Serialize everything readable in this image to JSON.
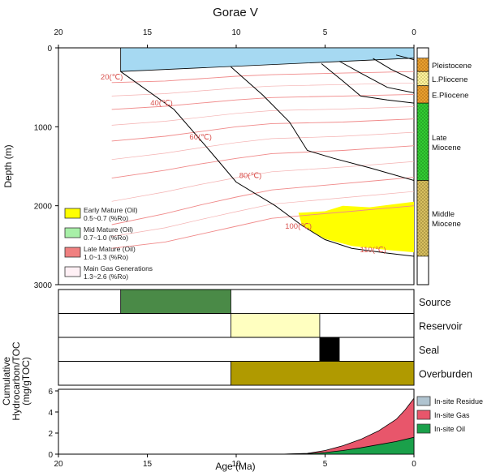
{
  "chart_data": [
    {
      "type": "burial-history",
      "title": "Gorae V",
      "xlabel": "",
      "ylabel": "Depth (m)",
      "x_ticks": [
        20,
        15,
        10,
        5,
        0
      ],
      "y_ticks": [
        0,
        1000,
        2000,
        3000
      ],
      "xlim": [
        20,
        0
      ],
      "ylim": [
        0,
        3000
      ],
      "burial_curves": [
        {
          "points": [
            [
              16.5,
              300
            ],
            [
              13.5,
              780
            ],
            [
              11.5,
              1300
            ],
            [
              10.0,
              1700
            ],
            [
              7.8,
              2000
            ],
            [
              6.3,
              2250
            ],
            [
              5.0,
              2430
            ],
            [
              3.5,
              2540
            ],
            [
              1.5,
              2600
            ],
            [
              0,
              2640
            ]
          ]
        },
        {
          "points": [
            [
              10.3,
              240
            ],
            [
              8.5,
              600
            ],
            [
              7.0,
              940
            ],
            [
              6.0,
              1300
            ],
            [
              4.5,
              1400
            ],
            [
              2.5,
              1520
            ],
            [
              0,
              1680
            ]
          ]
        },
        {
          "points": [
            [
              5.2,
              200
            ],
            [
              4.0,
              420
            ],
            [
              3.0,
              610
            ],
            [
              1.5,
              660
            ],
            [
              0,
              700
            ]
          ]
        },
        {
          "points": [
            [
              4.2,
              170
            ],
            [
              3.0,
              320
            ],
            [
              1.5,
              500
            ],
            [
              0,
              570
            ]
          ]
        },
        {
          "points": [
            [
              2.3,
              135
            ],
            [
              1.3,
              270
            ],
            [
              0,
              410
            ]
          ]
        },
        {
          "points": [
            [
              1.0,
              90
            ],
            [
              0,
              150
            ]
          ]
        }
      ],
      "surface_layer": {
        "top_left": [
          16.5,
          0
        ],
        "top_right": [
          0,
          0
        ],
        "bottom_left": [
          16.5,
          300
        ],
        "bottom_right": [
          0,
          130
        ]
      },
      "isotherm_labels": [
        {
          "label": "20(℃)",
          "age": 17.0,
          "depth": 400
        },
        {
          "label": "40(℃)",
          "age": 14.2,
          "depth": 730
        },
        {
          "label": "60(℃)",
          "age": 12.0,
          "depth": 1160
        },
        {
          "label": "80(℃)",
          "age": 9.2,
          "depth": 1650
        },
        {
          "label": "100(℃)",
          "age": 6.5,
          "depth": 2290
        },
        {
          "label": "110(℃)",
          "age": 2.3,
          "depth": 2590
        }
      ],
      "isotherm_depths": [
        [
          440,
          420,
          390,
          360,
          340,
          330,
          320,
          310,
          300
        ],
        [
          780,
          740,
          700,
          660,
          630,
          620,
          610,
          600,
          590
        ],
        [
          1180,
          1120,
          1060,
          1000,
          960,
          950,
          940,
          920,
          900
        ],
        [
          1650,
          1550,
          1470,
          1400,
          1340,
          1320,
          1300,
          1270,
          1240
        ],
        [
          2240,
          2100,
          1990,
          1890,
          1800,
          1760,
          1720,
          1680,
          1640
        ],
        [
          2540,
          2460,
          2360,
          2260,
          2160,
          2120,
          2080,
          2040,
          2000
        ]
      ],
      "isotherm_ages": [
        17.0,
        14.0,
        12.0,
        10.0,
        8.0,
        6.0,
        4.0,
        2.0,
        0.0
      ],
      "maturity_zones": [
        {
          "zone": "Early Mature (Oil)",
          "points": [
            [
              6.5,
              2090
            ],
            [
              5.0,
              2070
            ],
            [
              4.0,
              2000
            ],
            [
              2.5,
              2020
            ],
            [
              0,
              1950
            ],
            [
              0,
              2590
            ],
            [
              1.5,
              2560
            ],
            [
              3.5,
              2510
            ],
            [
              5.0,
              2420
            ],
            [
              6.3,
              2250
            ]
          ]
        }
      ],
      "legend": [
        {
          "label": "Early Mature (Oil)",
          "range": "0.5~0.7 (%Ro)",
          "color": "#ffff00"
        },
        {
          "label": "Mid Mature (Oil)",
          "range": "0.7~1.0 (%Ro)",
          "color": "#a8f0a8"
        },
        {
          "label": "Late Mature (Oil)",
          "range": "1.0~1.3 (%Ro)",
          "color": "#f08080"
        },
        {
          "label": "Main Gas Generations",
          "range": "1.3~2.6 (%Ro)",
          "color": "#fff0f5"
        }
      ],
      "epochs": [
        {
          "name": "Pleistocene",
          "top": 130,
          "bottom": 300,
          "pattern": "dots-orange"
        },
        {
          "name": "L.Pliocene",
          "top": 300,
          "bottom": 480,
          "pattern": "dots-yellow"
        },
        {
          "name": "E.Pliocene",
          "top": 480,
          "bottom": 700,
          "pattern": "dots-orange"
        },
        {
          "name": "Late Miocene",
          "top": 700,
          "bottom": 1680,
          "pattern": "dots-green"
        },
        {
          "name": "Middle Miocene",
          "top": 1680,
          "bottom": 2640,
          "pattern": "dots-khaki"
        }
      ],
      "epoch_labels": [
        "Pleistocene",
        "L.Pliocene",
        "E.Pliocene",
        "Late\nMiocene",
        "Middle\nMiocene"
      ]
    },
    {
      "type": "event-chart",
      "rows": [
        {
          "name": "Source",
          "start": 16.5,
          "end": 10.3,
          "color": "#4a8a47"
        },
        {
          "name": "Reservoir",
          "start": 10.3,
          "end": 5.3,
          "color": "#ffffc0"
        },
        {
          "name": "Seal",
          "start": 5.3,
          "end": 4.2,
          "color": "#000000"
        },
        {
          "name": "Overburden",
          "start": 10.3,
          "end": 0,
          "color": "#b09a00"
        }
      ]
    },
    {
      "type": "area",
      "ylabel": "Cumulative Hydrocarbon/TOC (mg/gTOC)",
      "xlabel": "Age (Ma)",
      "x_ticks": [
        20,
        15,
        10,
        5,
        0
      ],
      "y_ticks": [
        0,
        2,
        4,
        6
      ],
      "xlim": [
        20,
        0
      ],
      "ylim": [
        0,
        6
      ],
      "x": [
        7.5,
        6.0,
        5.0,
        4.0,
        3.0,
        2.0,
        1.0,
        0.5,
        0
      ],
      "series": [
        {
          "name": "In-site Oil",
          "values": [
            0,
            0.05,
            0.15,
            0.35,
            0.6,
            0.9,
            1.2,
            1.4,
            1.6
          ],
          "color": "#1aa04a"
        },
        {
          "name": "In-site Gas",
          "values": [
            0,
            0.08,
            0.35,
            0.8,
            1.4,
            2.2,
            3.3,
            4.2,
            5.3
          ],
          "color": "#e8566b"
        },
        {
          "name": "In-site Residue",
          "values": [
            0,
            0.08,
            0.35,
            0.8,
            1.4,
            2.2,
            3.3,
            4.2,
            5.3
          ],
          "color": "#b0c4d0"
        }
      ]
    }
  ],
  "title": "Gorae V",
  "axis_labels": {
    "depth": "Depth (m)",
    "age": "Age (Ma)",
    "hc_line1": "Cumulative",
    "hc_line2": "Hydrocarbon/TOC",
    "hc_line3": "(mg/gTOC)"
  }
}
